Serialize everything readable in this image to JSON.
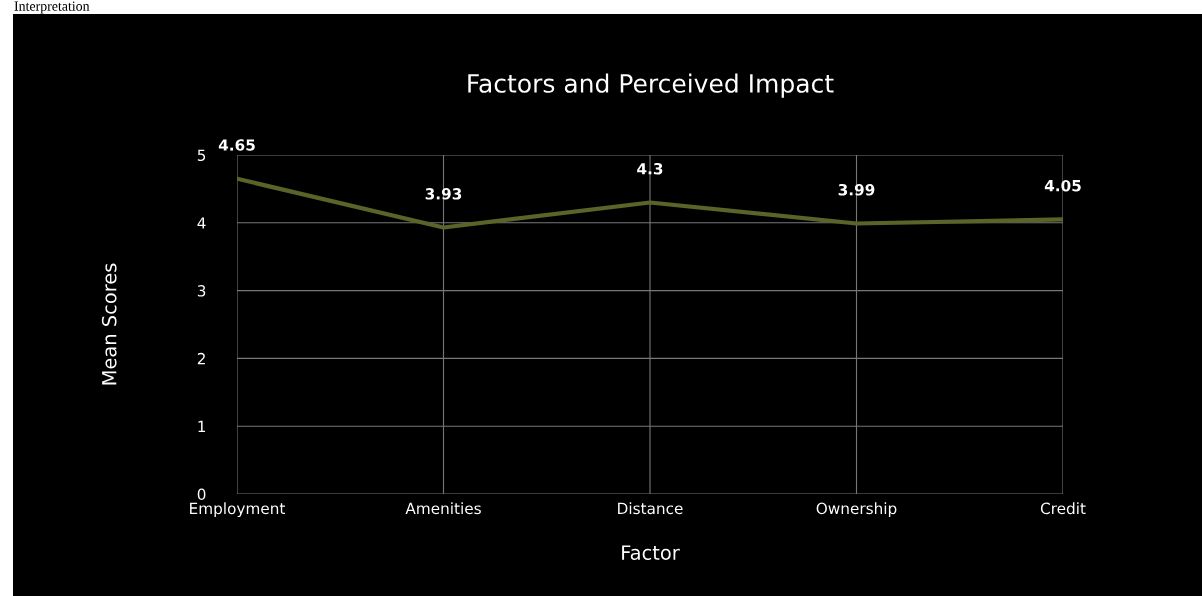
{
  "chart_data": {
    "type": "line",
    "title": "Factors and Perceived Impact",
    "xlabel": "Factor",
    "ylabel": "Mean Scores",
    "annotations": [
      "Interpretation"
    ],
    "categories": [
      "Employment",
      "Amenities",
      "Distance",
      "Ownership",
      "Credit"
    ],
    "series": [
      {
        "color": "#5a6428",
        "values": [
          4.65,
          3.93,
          4.3,
          3.99,
          4.05
        ]
      }
    ],
    "ylim": [
      0,
      5
    ],
    "yticks": [
      0,
      1,
      2,
      3,
      4,
      5
    ],
    "grid": true,
    "data_labels": true,
    "marker": "none",
    "line_style": "solid"
  }
}
